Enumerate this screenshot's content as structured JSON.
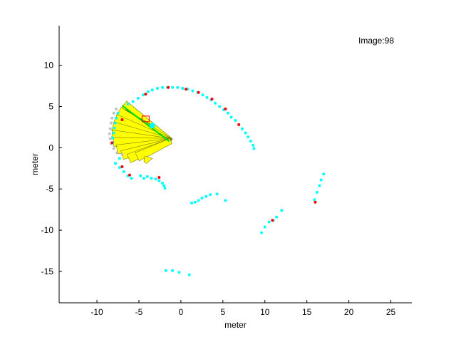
{
  "chart_data": {
    "type": "scatter",
    "title": "",
    "annotation": "Image:98",
    "xlabel": "meter",
    "ylabel": "meter",
    "xlim": [
      -14.5,
      27.5
    ],
    "ylim": [
      -18.8,
      14.8
    ],
    "xticks": [
      -10,
      -5,
      0,
      5,
      10,
      15,
      20,
      25
    ],
    "yticks": [
      -15,
      -10,
      -5,
      0,
      5,
      10
    ],
    "grid": false,
    "colors": {
      "cyan": "#00ffff",
      "red": "#ff0000",
      "gray": "#c0c0c0",
      "yellow": "#ffff00",
      "green": "#00e000",
      "outline": "#808000",
      "axis": "#000000"
    },
    "series": [
      {
        "marker": "cyan-dot",
        "points": [
          [
            -6.3,
            5.3
          ],
          [
            -5.7,
            5.6
          ],
          [
            -5.1,
            6.0
          ],
          [
            -4.5,
            6.4
          ],
          [
            -3.9,
            6.8
          ],
          [
            -3.4,
            7.0
          ],
          [
            -2.8,
            7.2
          ],
          [
            -2.2,
            7.3
          ],
          [
            -1.6,
            7.3
          ],
          [
            -1.0,
            7.3
          ],
          [
            -0.4,
            7.3
          ],
          [
            0.2,
            7.2
          ],
          [
            0.8,
            7.1
          ],
          [
            1.4,
            6.9
          ],
          [
            2.0,
            6.7
          ],
          [
            2.6,
            6.4
          ],
          [
            3.1,
            6.1
          ],
          [
            3.6,
            5.8
          ],
          [
            4.1,
            5.4
          ],
          [
            4.6,
            5.0
          ],
          [
            5.1,
            4.6
          ],
          [
            5.6,
            4.2
          ],
          [
            6.0,
            3.7
          ],
          [
            6.5,
            3.3
          ],
          [
            6.9,
            2.8
          ],
          [
            7.3,
            2.3
          ],
          [
            7.7,
            1.8
          ],
          [
            8.0,
            1.3
          ],
          [
            8.3,
            0.8
          ],
          [
            8.6,
            0.3
          ],
          [
            8.7,
            -0.1
          ],
          [
            -7.5,
            4.2
          ],
          [
            -7.7,
            3.6
          ],
          [
            -7.8,
            3.0
          ],
          [
            -7.9,
            2.4
          ],
          [
            -8.0,
            1.8
          ],
          [
            -8.1,
            1.2
          ],
          [
            -8.1,
            0.6
          ],
          [
            -7.3,
            -1.3
          ],
          [
            -7.8,
            -1.9
          ],
          [
            -7.3,
            -2.4
          ],
          [
            -6.8,
            -2.9
          ],
          [
            -6.3,
            -3.4
          ],
          [
            -5.9,
            -3.7
          ],
          [
            -4.8,
            -3.4
          ],
          [
            -4.4,
            -3.7
          ],
          [
            -4.0,
            -3.5
          ],
          [
            -3.5,
            -3.7
          ],
          [
            -3.0,
            -3.8
          ],
          [
            -2.6,
            -4.0
          ],
          [
            -2.2,
            -4.3
          ],
          [
            -2.0,
            -4.6
          ],
          [
            -1.9,
            -4.9
          ],
          [
            1.3,
            -6.7
          ],
          [
            1.7,
            -6.6
          ],
          [
            2.1,
            -6.4
          ],
          [
            2.5,
            -6.1
          ],
          [
            3.0,
            -5.9
          ],
          [
            3.5,
            -5.7
          ],
          [
            4.3,
            -5.6
          ],
          [
            5.3,
            -6.4
          ],
          [
            9.6,
            -10.3
          ],
          [
            10.0,
            -9.6
          ],
          [
            10.5,
            -9.0
          ],
          [
            11.0,
            -8.8
          ],
          [
            11.4,
            -8.4
          ],
          [
            12.0,
            -7.6
          ],
          [
            15.9,
            -6.3
          ],
          [
            16.2,
            -5.4
          ],
          [
            16.5,
            -4.6
          ],
          [
            16.7,
            -3.9
          ],
          [
            17.0,
            -3.2
          ],
          [
            -1.8,
            -14.9
          ],
          [
            -1.0,
            -14.9
          ],
          [
            -0.2,
            -15.1
          ],
          [
            1.0,
            -15.4
          ]
        ]
      },
      {
        "marker": "red-dot",
        "points": [
          [
            -4.2,
            6.5
          ],
          [
            -1.5,
            7.3
          ],
          [
            0.6,
            7.1
          ],
          [
            2.1,
            6.7
          ],
          [
            3.7,
            5.9
          ],
          [
            5.3,
            4.7
          ],
          [
            6.9,
            2.8
          ],
          [
            -8.2,
            0.6
          ],
          [
            -7.0,
            -2.3
          ],
          [
            -6.1,
            -3.3
          ],
          [
            -2.6,
            -3.6
          ],
          [
            10.9,
            -8.8
          ],
          [
            16.0,
            -6.6
          ],
          [
            -7.0,
            3.4
          ]
        ]
      },
      {
        "marker": "gray-dot",
        "points": [
          [
            -7.7,
            4.7
          ],
          [
            -8.0,
            4.2
          ],
          [
            -8.2,
            3.6
          ],
          [
            -8.3,
            3.0
          ],
          [
            -8.4,
            2.3
          ],
          [
            -8.5,
            1.7
          ],
          [
            -8.4,
            1.1
          ],
          [
            -8.3,
            0.5
          ],
          [
            -8.0,
            -0.1
          ],
          [
            -7.6,
            -0.6
          ],
          [
            -7.0,
            -0.8
          ]
        ]
      }
    ],
    "vehicle_overlay": {
      "fan_origin": [
        -1.2,
        0.8
      ],
      "fan_endpoints": [
        [
          -6.8,
          5.2
        ],
        [
          -7.4,
          4.4
        ],
        [
          -7.8,
          3.5
        ],
        [
          -8.1,
          2.6
        ],
        [
          -8.2,
          1.6
        ],
        [
          -8.0,
          0.7
        ],
        [
          -7.6,
          -0.2
        ],
        [
          -7.0,
          -0.9
        ],
        [
          -6.2,
          -1.3
        ],
        [
          -5.2,
          -1.1
        ]
      ],
      "hook": [
        [
          -4.3,
          -1.0
        ],
        [
          -3.4,
          -1.3
        ],
        [
          -4.1,
          -1.9
        ],
        [
          -4.4,
          -1.7
        ]
      ],
      "green_line": [
        [
          -7.0,
          5.1
        ],
        [
          -1.4,
          0.8
        ]
      ],
      "cyan_marker": [
        -3.4,
        2.7
      ],
      "red_box": [
        -4.2,
        3.5
      ],
      "path": [
        [
          -6.6,
          4.6
        ],
        [
          -3.4,
          2.7
        ]
      ]
    }
  }
}
